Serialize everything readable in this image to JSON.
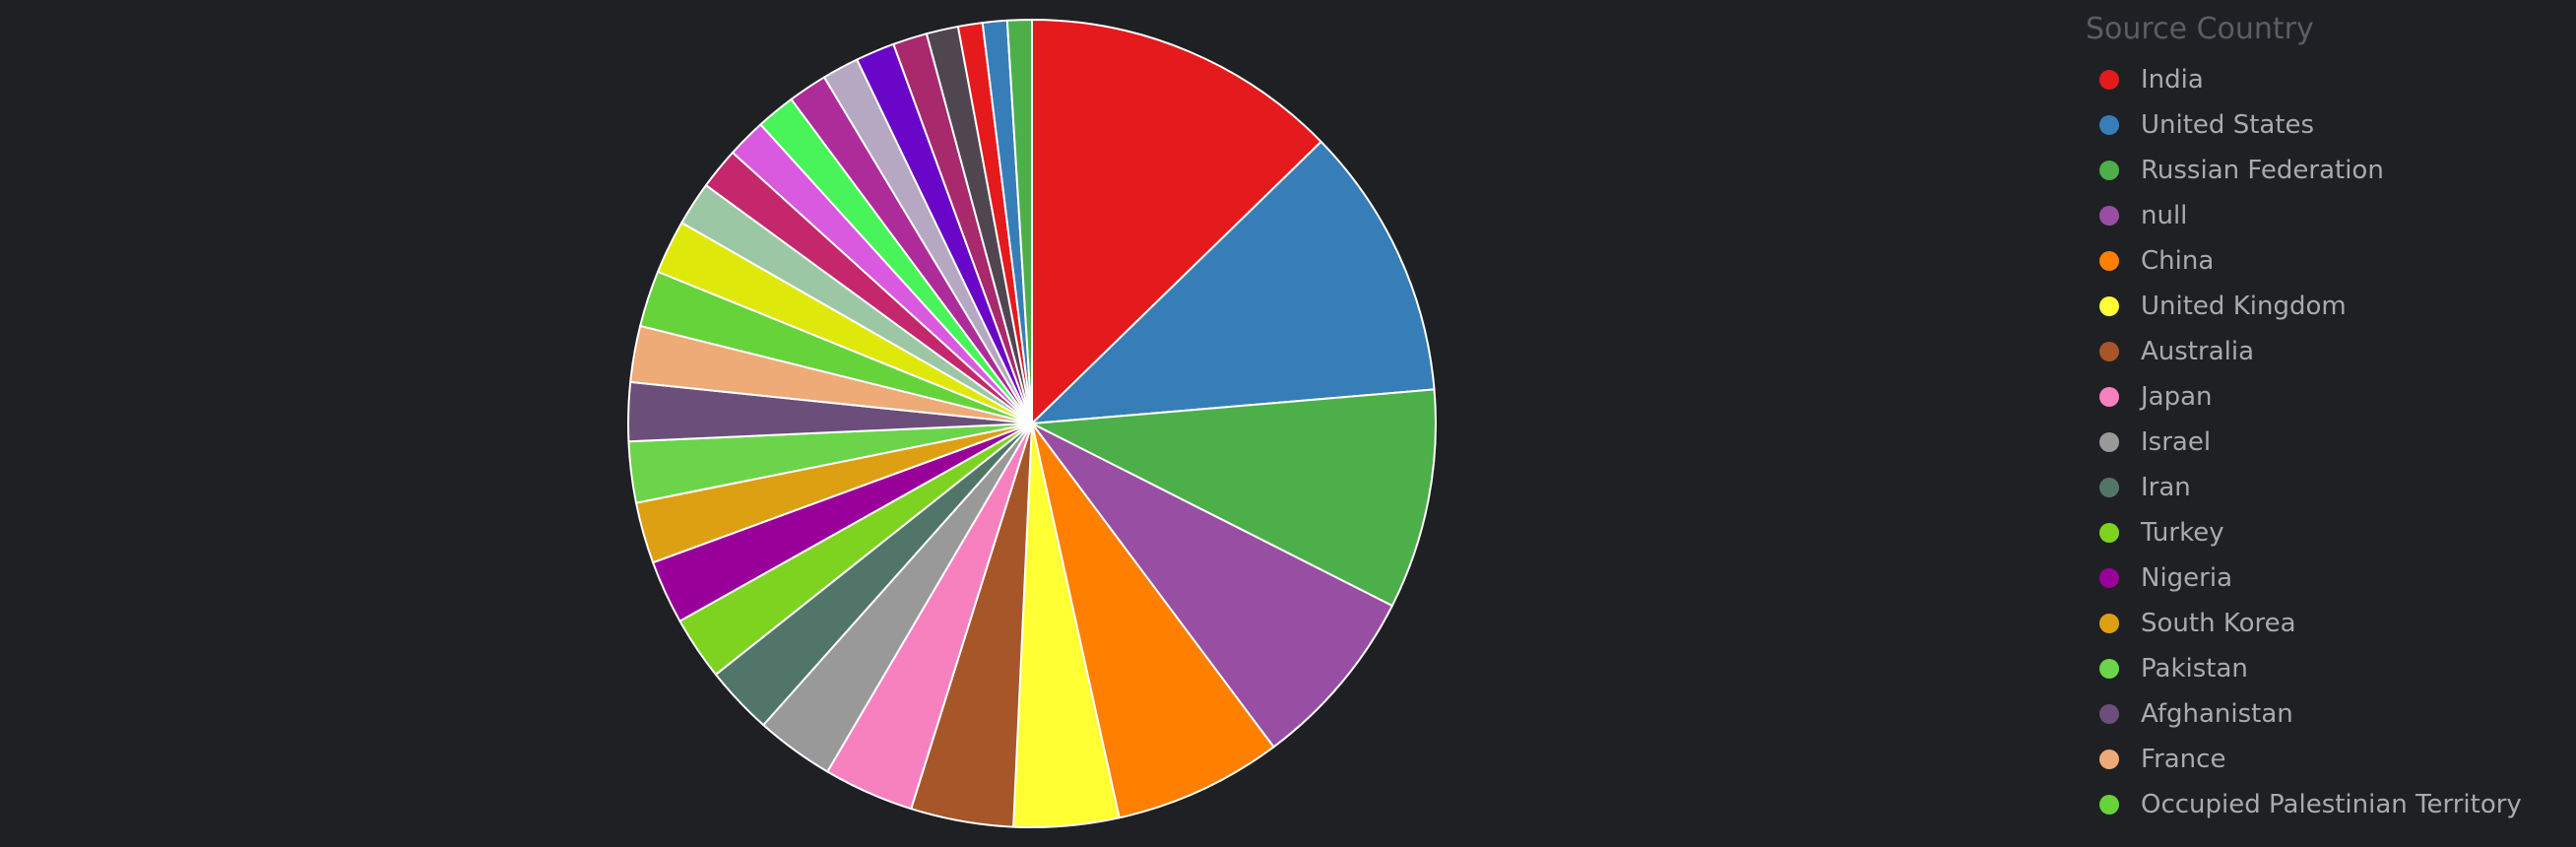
{
  "legend": {
    "title": "Source Country",
    "items": [
      {
        "label": "India",
        "color": "#e41a1c"
      },
      {
        "label": "United States",
        "color": "#377eb8"
      },
      {
        "label": "Russian Federation",
        "color": "#4daf4a"
      },
      {
        "label": "null",
        "color": "#984ea3"
      },
      {
        "label": "China",
        "color": "#ff7f00"
      },
      {
        "label": "United Kingdom",
        "color": "#ffff33"
      },
      {
        "label": "Australia",
        "color": "#a65628"
      },
      {
        "label": "Japan",
        "color": "#f781bf"
      },
      {
        "label": "Israel",
        "color": "#999999"
      },
      {
        "label": "Iran",
        "color": "#52756a"
      },
      {
        "label": "Turkey",
        "color": "#7ed321"
      },
      {
        "label": "Nigeria",
        "color": "#990099"
      },
      {
        "label": "South Korea",
        "color": "#dda012"
      },
      {
        "label": "Pakistan",
        "color": "#6bd44a"
      },
      {
        "label": "Afghanistan",
        "color": "#6b4f7a"
      },
      {
        "label": "France",
        "color": "#eeaa77"
      },
      {
        "label": "Occupied Palestinian Territory",
        "color": "#66d33a"
      }
    ]
  },
  "chart_data": {
    "type": "pie",
    "title": "",
    "legend_title": "Source Country",
    "legend_position": "right",
    "slices": [
      {
        "label": "India",
        "value": 13.0,
        "color": "#e41a1c"
      },
      {
        "label": "United States",
        "value": 11.2,
        "color": "#377eb8"
      },
      {
        "label": "Russian Federation",
        "value": 9.0,
        "color": "#4daf4a"
      },
      {
        "label": "null",
        "value": 7.5,
        "color": "#984ea3"
      },
      {
        "label": "China",
        "value": 6.9,
        "color": "#ff7f00"
      },
      {
        "label": "United Kingdom",
        "value": 4.3,
        "color": "#ffff33"
      },
      {
        "label": "Australia",
        "value": 4.2,
        "color": "#a65628"
      },
      {
        "label": "Japan",
        "value": 3.7,
        "color": "#f781bf"
      },
      {
        "label": "Israel",
        "value": 3.2,
        "color": "#999999"
      },
      {
        "label": "Iran",
        "value": 2.8,
        "color": "#52756a"
      },
      {
        "label": "Turkey",
        "value": 2.6,
        "color": "#7ed321"
      },
      {
        "label": "Nigeria",
        "value": 2.6,
        "color": "#990099"
      },
      {
        "label": "South Korea",
        "value": 2.5,
        "color": "#dda012"
      },
      {
        "label": "Pakistan",
        "value": 2.5,
        "color": "#6bd44a"
      },
      {
        "label": "Afghanistan",
        "value": 2.4,
        "color": "#6b4f7a"
      },
      {
        "label": "France",
        "value": 2.3,
        "color": "#eeaa77"
      },
      {
        "label": "Occupied Palestinian Territory",
        "value": 2.3,
        "color": "#66d33a"
      },
      {
        "value": 2.2,
        "color": "#dfe80b"
      },
      {
        "value": 1.8,
        "color": "#9cc7a4"
      },
      {
        "value": 1.7,
        "color": "#c4276b"
      },
      {
        "value": 1.6,
        "color": "#d95ade"
      },
      {
        "value": 1.6,
        "color": "#49f35a"
      },
      {
        "value": 1.6,
        "color": "#ae2c99"
      },
      {
        "value": 1.5,
        "color": "#b6a7c2"
      },
      {
        "value": 1.6,
        "color": "#6a06c8"
      },
      {
        "value": 1.4,
        "color": "#a9296d"
      },
      {
        "value": 1.3,
        "color": "#4f4650"
      },
      {
        "value": 1.0,
        "color": "#e41a1c"
      },
      {
        "value": 1.0,
        "color": "#377eb8"
      },
      {
        "value": 1.0,
        "color": "#4daf4a"
      }
    ]
  }
}
